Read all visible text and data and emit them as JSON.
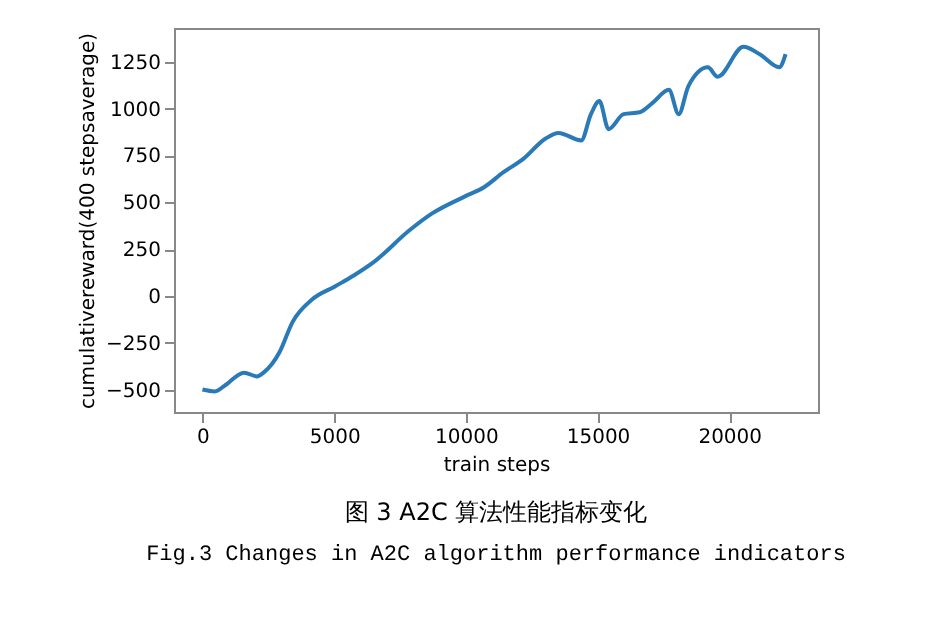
{
  "chart_data": {
    "type": "line",
    "xlabel": "train steps",
    "ylabel": "cumulativereward(400 stepsaverage)",
    "annotations": [
      "图 3 A2C 算法性能指标变化",
      "Fig.3 Changes in A2C algorithm performance indicators"
    ],
    "x": [
      0,
      470,
      840,
      1580,
      2070,
      2320,
      2930,
      3420,
      4160,
      5030,
      5760,
      6500,
      7860,
      8720,
      9950,
      10690,
      11430,
      12170,
      13030,
      13520,
      14380,
      14750,
      15070,
      15420,
      15990,
      16600,
      17090,
      17710,
      18080,
      18450,
      19190,
      19560,
      20540,
      21160,
      21900,
      22140
    ],
    "series": [
      {
        "color": "#2a7ab8",
        "values": [
          -500,
          -510,
          -480,
          -410,
          -430,
          -410,
          -300,
          -140,
          -20,
          50,
          110,
          180,
          350,
          440,
          530,
          580,
          660,
          730,
          840,
          870,
          830,
          970,
          1040,
          890,
          970,
          980,
          1030,
          1100,
          970,
          1120,
          1220,
          1170,
          1330,
          1290,
          1220,
          1290
        ]
      }
    ],
    "xlim": [
      -1080,
      23370
    ],
    "ylim": [
      -620,
      1430
    ],
    "xticks": [
      0,
      5000,
      10000,
      15000,
      20000
    ],
    "yticks": [
      -500,
      -250,
      0,
      250,
      500,
      750,
      1000,
      1250
    ],
    "grid": false
  }
}
